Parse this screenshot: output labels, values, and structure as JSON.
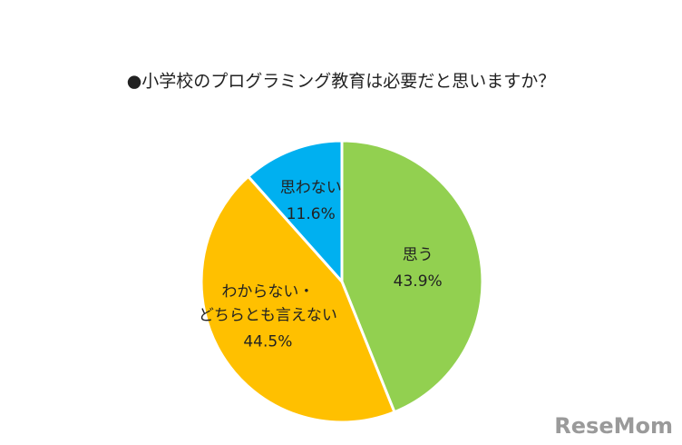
{
  "chart_data": {
    "type": "pie",
    "title": "●小学校のプログラミング教育は必要だと思いますか？",
    "categories": [
      "思う",
      "わからない・\nどちらとも言えない",
      "思わない"
    ],
    "values": [
      43.9,
      44.5,
      11.6
    ],
    "value_labels": [
      "43.9%",
      "44.5%",
      "11.6%"
    ],
    "colors": [
      "#92d050",
      "#ffc000",
      "#00b0f0"
    ]
  },
  "watermark": "ReseMom"
}
